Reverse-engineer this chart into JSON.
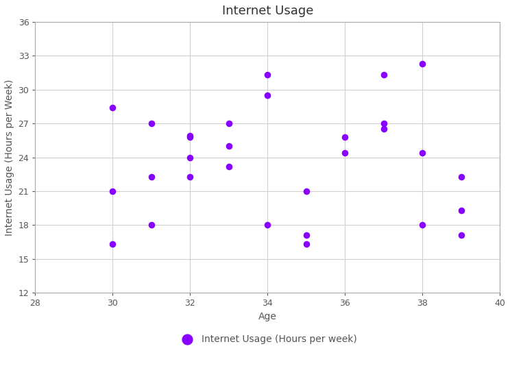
{
  "title": "Internet Usage",
  "xlabel": "Age",
  "ylabel": "Internet Usage (Hours per Week)",
  "legend_label": "Internet Usage (Hours per week)",
  "xlim": [
    28,
    40
  ],
  "ylim": [
    12,
    36
  ],
  "xticks": [
    28,
    30,
    32,
    34,
    36,
    38,
    40
  ],
  "yticks": [
    12,
    15,
    18,
    21,
    24,
    27,
    30,
    33,
    36
  ],
  "marker_color": "#8800ff",
  "marker_size": 35,
  "background_color": "#ffffff",
  "grid_color": "#d0d0d0",
  "points": [
    [
      30,
      28.4
    ],
    [
      30,
      21.0
    ],
    [
      30,
      16.3
    ],
    [
      31,
      27.0
    ],
    [
      31,
      22.3
    ],
    [
      31,
      18.0
    ],
    [
      32,
      25.8
    ],
    [
      32,
      25.9
    ],
    [
      32,
      24.0
    ],
    [
      32,
      22.3
    ],
    [
      33,
      27.0
    ],
    [
      33,
      25.0
    ],
    [
      33,
      23.2
    ],
    [
      34,
      31.3
    ],
    [
      34,
      29.5
    ],
    [
      34,
      18.0
    ],
    [
      35,
      21.0
    ],
    [
      35,
      17.1
    ],
    [
      35,
      16.3
    ],
    [
      36,
      25.8
    ],
    [
      36,
      24.4
    ],
    [
      37,
      31.3
    ],
    [
      37,
      27.0
    ],
    [
      37,
      26.5
    ],
    [
      38,
      32.3
    ],
    [
      38,
      24.4
    ],
    [
      38,
      18.0
    ],
    [
      39,
      22.3
    ],
    [
      39,
      19.3
    ],
    [
      39,
      17.1
    ]
  ],
  "title_fontsize": 13,
  "label_fontsize": 10,
  "tick_fontsize": 9,
  "legend_fontsize": 10,
  "tick_color": "#555555",
  "label_color": "#555555",
  "title_color": "#333333",
  "spine_color": "#aaaaaa"
}
